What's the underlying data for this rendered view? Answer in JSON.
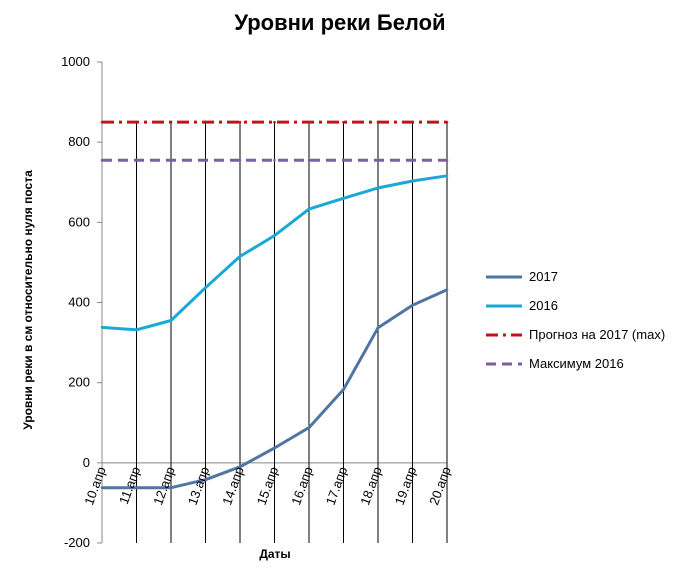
{
  "chart_data": {
    "type": "line",
    "title": "Уровни реки Белой",
    "xlabel": "Даты",
    "ylabel": "Уровни реки в см относительно нуля поста",
    "ylim": [
      -200,
      1000
    ],
    "yticks": [
      -200,
      0,
      200,
      400,
      600,
      800,
      1000
    ],
    "categories": [
      "10.апр",
      "11.апр",
      "12.апр",
      "13.апр",
      "14.апр",
      "15.апр",
      "16.апр",
      "17.апр",
      "18.апр",
      "19.апр",
      "20.апр"
    ],
    "grid": "vertical",
    "legend_position": "right",
    "series": [
      {
        "name": "2017",
        "style": "solid",
        "color": "#4f76a3",
        "values": [
          -62,
          -62,
          -62,
          -42,
          -10,
          37,
          88,
          183,
          337,
          393,
          432
        ]
      },
      {
        "name": "2016",
        "style": "solid",
        "color": "#1aa8d6",
        "values": [
          338,
          332,
          355,
          437,
          515,
          567,
          633,
          660,
          686,
          703,
          716
        ]
      },
      {
        "name": "Прогноз на 2017  (max)",
        "style": "dash-dot",
        "color": "#c0141a",
        "values": [
          850,
          850,
          850,
          850,
          850,
          850,
          850,
          850,
          850,
          850,
          850
        ]
      },
      {
        "name": "Максимум  2016",
        "style": "dashed",
        "color": "#7b5fa4",
        "values": [
          755,
          755,
          755,
          755,
          755,
          755,
          755,
          755,
          755,
          755,
          755
        ]
      }
    ]
  }
}
